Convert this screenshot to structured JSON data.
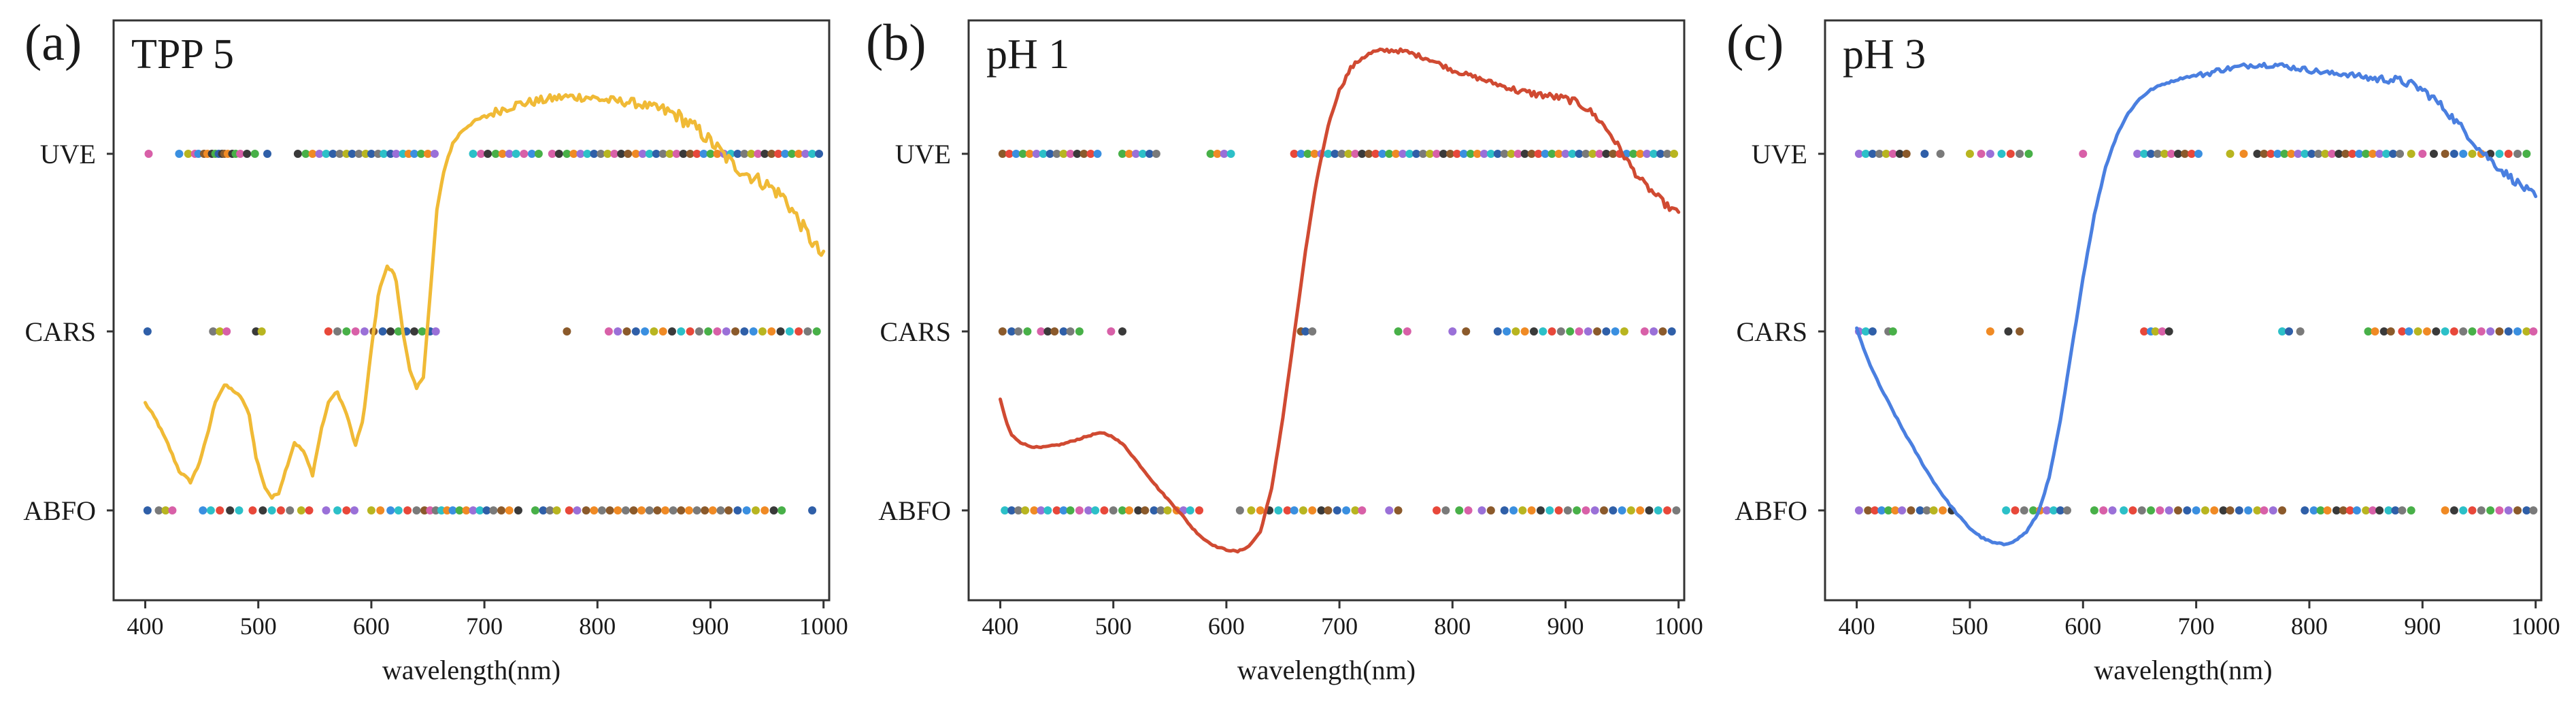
{
  "chart_data": [
    {
      "type": "line+strip",
      "panel_label": "(a)",
      "title": "TPP 5",
      "xlabel": "wavelength(nm)",
      "ylabel": "",
      "xlim": [
        372,
        1005
      ],
      "x_ticks": [
        "400",
        "500",
        "600",
        "700",
        "800",
        "900",
        "1000"
      ],
      "categories": [
        "ABFO",
        "CARS",
        "UVE"
      ],
      "spectrum_color": "#F0BA36",
      "spectrum_noise": 0.05,
      "spectrum": {
        "x": [
          400,
          410,
          420,
          430,
          440,
          447,
          455,
          462,
          470,
          478,
          486,
          492,
          498,
          505,
          512,
          518,
          525,
          532,
          540,
          548,
          556,
          563,
          570,
          578,
          586,
          593,
          600,
          607,
          614,
          621,
          628,
          634,
          640,
          646,
          652,
          658,
          665,
          672,
          680,
          690,
          700,
          715,
          730,
          750,
          770,
          790,
          810,
          830,
          850,
          870,
          890,
          905,
          920,
          935,
          950,
          965,
          980,
          990,
          1000
        ],
        "y": [
          0.6,
          0.5,
          0.37,
          0.22,
          0.16,
          0.25,
          0.42,
          0.61,
          0.7,
          0.67,
          0.62,
          0.53,
          0.3,
          0.14,
          0.07,
          0.1,
          0.24,
          0.38,
          0.33,
          0.2,
          0.46,
          0.62,
          0.66,
          0.54,
          0.36,
          0.52,
          0.9,
          1.24,
          1.36,
          1.32,
          1.0,
          0.78,
          0.68,
          0.75,
          1.2,
          1.68,
          1.92,
          2.05,
          2.12,
          2.17,
          2.2,
          2.24,
          2.27,
          2.29,
          2.31,
          2.31,
          2.29,
          2.28,
          2.25,
          2.21,
          2.12,
          2.03,
          1.93,
          1.87,
          1.82,
          1.75,
          1.6,
          1.5,
          1.41
        ]
      },
      "strips": {
        "UVE": [
          403,
          430,
          438,
          444,
          447,
          452,
          455,
          459,
          462,
          465,
          468,
          470,
          473,
          477,
          480,
          484,
          490,
          497,
          508,
          535,
          542,
          548,
          554,
          560,
          566,
          572,
          578,
          583,
          589,
          595,
          600,
          606,
          611,
          617,
          622,
          628,
          633,
          638,
          644,
          650,
          656,
          690,
          697,
          703,
          710,
          716,
          722,
          728,
          735,
          742,
          748,
          760,
          766,
          773,
          779,
          785,
          791,
          797,
          803,
          809,
          815,
          821,
          827,
          834,
          840,
          846,
          852,
          858,
          864,
          870,
          876,
          882,
          888,
          894,
          900,
          906,
          912,
          918,
          924,
          930,
          936,
          942,
          948,
          954,
          960,
          966,
          972,
          978,
          984,
          990,
          996
        ],
        "CARS": [
          402,
          460,
          466,
          472,
          498,
          503,
          562,
          570,
          578,
          586,
          594,
          602,
          610,
          617,
          624,
          631,
          638,
          645,
          652,
          657,
          773,
          810,
          818,
          826,
          834,
          842,
          850,
          858,
          866,
          874,
          882,
          890,
          898,
          906,
          914,
          922,
          930,
          938,
          946,
          954,
          962,
          970,
          978,
          986,
          994
        ],
        "ABFO": [
          402,
          412,
          418,
          424,
          451,
          458,
          466,
          475,
          483,
          495,
          504,
          512,
          520,
          528,
          538,
          545,
          560,
          570,
          578,
          585,
          600,
          608,
          617,
          624,
          632,
          640,
          647,
          652,
          657,
          662,
          667,
          672,
          678,
          684,
          690,
          696,
          702,
          708,
          715,
          722,
          730,
          745,
          752,
          758,
          764,
          775,
          782,
          790,
          797,
          804,
          811,
          818,
          825,
          832,
          839,
          846,
          853,
          860,
          867,
          874,
          881,
          888,
          895,
          902,
          909,
          916,
          924,
          932,
          940,
          948,
          956,
          963,
          990
        ]
      }
    },
    {
      "type": "line+strip",
      "panel_label": "(b)",
      "title": "pH 1",
      "xlabel": "wavelength(nm)",
      "ylabel": "",
      "xlim": [
        372,
        1005
      ],
      "x_ticks": [
        "400",
        "500",
        "600",
        "700",
        "800",
        "900",
        "1000"
      ],
      "categories": [
        "ABFO",
        "CARS",
        "UVE"
      ],
      "spectrum_color": "#D04A32",
      "spectrum_noise": 0.025,
      "spectrum": {
        "x": [
          400,
          405,
          410,
          418,
          425,
          435,
          445,
          455,
          465,
          475,
          485,
          492,
          500,
          510,
          520,
          530,
          540,
          550,
          560,
          570,
          580,
          590,
          600,
          610,
          620,
          630,
          640,
          650,
          660,
          670,
          680,
          690,
          700,
          710,
          720,
          730,
          740,
          750,
          760,
          770,
          780,
          790,
          800,
          810,
          820,
          830,
          840,
          850,
          860,
          870,
          880,
          890,
          900,
          910,
          920,
          930,
          940,
          950,
          960,
          970,
          980,
          990,
          1000
        ],
        "y": [
          0.62,
          0.5,
          0.42,
          0.38,
          0.36,
          0.35,
          0.36,
          0.37,
          0.39,
          0.41,
          0.43,
          0.43,
          0.41,
          0.36,
          0.28,
          0.2,
          0.12,
          0.05,
          -0.02,
          -0.1,
          -0.16,
          -0.2,
          -0.22,
          -0.23,
          -0.2,
          -0.12,
          0.12,
          0.52,
          0.98,
          1.45,
          1.85,
          2.15,
          2.35,
          2.47,
          2.53,
          2.56,
          2.57,
          2.57,
          2.56,
          2.54,
          2.52,
          2.49,
          2.46,
          2.44,
          2.42,
          2.4,
          2.38,
          2.36,
          2.34,
          2.33,
          2.32,
          2.31,
          2.3,
          2.28,
          2.24,
          2.18,
          2.1,
          2.0,
          1.9,
          1.82,
          1.76,
          1.7,
          1.66
        ]
      },
      "strips": {
        "UVE": [
          402,
          408,
          414,
          420,
          426,
          432,
          438,
          444,
          450,
          456,
          462,
          468,
          474,
          480,
          486,
          508,
          514,
          520,
          526,
          532,
          538,
          586,
          592,
          598,
          604,
          660,
          666,
          672,
          678,
          684,
          690,
          696,
          702,
          708,
          714,
          720,
          726,
          732,
          738,
          744,
          750,
          756,
          762,
          768,
          774,
          780,
          786,
          792,
          798,
          804,
          810,
          816,
          822,
          828,
          834,
          840,
          846,
          852,
          858,
          864,
          870,
          876,
          882,
          888,
          894,
          900,
          906,
          912,
          918,
          924,
          930,
          936,
          942,
          948,
          954,
          960,
          966,
          972,
          978,
          984,
          990,
          996
        ],
        "CARS": [
          402,
          410,
          416,
          424,
          436,
          442,
          448,
          456,
          462,
          470,
          498,
          508,
          666,
          670,
          676,
          752,
          760,
          800,
          812,
          840,
          848,
          856,
          864,
          872,
          880,
          888,
          896,
          904,
          912,
          920,
          928,
          936,
          944,
          952,
          970,
          978,
          986,
          994
        ],
        "ABFO": [
          404,
          410,
          416,
          422,
          430,
          436,
          442,
          450,
          456,
          462,
          470,
          478,
          484,
          492,
          500,
          508,
          514,
          522,
          528,
          536,
          542,
          548,
          556,
          562,
          568,
          576,
          612,
          622,
          630,
          638,
          646,
          654,
          660,
          668,
          676,
          684,
          690,
          698,
          706,
          714,
          720,
          744,
          752,
          786,
          794,
          806,
          814,
          826,
          834,
          846,
          854,
          862,
          870,
          878,
          886,
          894,
          902,
          910,
          918,
          926,
          934,
          942,
          950,
          958,
          966,
          974,
          982,
          990,
          998
        ]
      }
    },
    {
      "type": "line+strip",
      "panel_label": "(c)",
      "title": "pH 3",
      "xlabel": "wavelength(nm)",
      "ylabel": "",
      "xlim": [
        372,
        1005
      ],
      "x_ticks": [
        "400",
        "500",
        "600",
        "700",
        "800",
        "900",
        "1000"
      ],
      "categories": [
        "ABFO",
        "CARS",
        "UVE"
      ],
      "spectrum_color": "#4A7FE0",
      "spectrum_noise": 0.03,
      "spectrum": {
        "x": [
          400,
          405,
          410,
          420,
          430,
          440,
          450,
          460,
          470,
          480,
          490,
          500,
          510,
          520,
          530,
          540,
          550,
          560,
          570,
          580,
          590,
          600,
          610,
          620,
          630,
          640,
          650,
          660,
          670,
          680,
          690,
          700,
          710,
          720,
          730,
          740,
          750,
          760,
          770,
          780,
          790,
          800,
          810,
          820,
          830,
          840,
          850,
          860,
          870,
          880,
          890,
          900,
          910,
          920,
          930,
          940,
          950,
          960,
          970,
          980,
          990,
          1000
        ],
        "y": [
          1.02,
          0.92,
          0.84,
          0.7,
          0.58,
          0.46,
          0.35,
          0.24,
          0.14,
          0.05,
          -0.03,
          -0.1,
          -0.15,
          -0.18,
          -0.19,
          -0.17,
          -0.12,
          -0.02,
          0.18,
          0.5,
          0.9,
          1.3,
          1.65,
          1.92,
          2.1,
          2.22,
          2.3,
          2.35,
          2.38,
          2.4,
          2.42,
          2.43,
          2.44,
          2.46,
          2.47,
          2.48,
          2.49,
          2.49,
          2.49,
          2.48,
          2.47,
          2.46,
          2.45,
          2.44,
          2.44,
          2.43,
          2.42,
          2.41,
          2.41,
          2.4,
          2.38,
          2.35,
          2.3,
          2.24,
          2.17,
          2.1,
          2.02,
          1.96,
          1.9,
          1.85,
          1.8,
          1.75
        ]
      },
      "strips": {
        "UVE": [
          402,
          408,
          414,
          420,
          426,
          432,
          438,
          444,
          460,
          474,
          500,
          510,
          518,
          528,
          536,
          544,
          552,
          600,
          648,
          654,
          660,
          666,
          672,
          678,
          684,
          690,
          696,
          702,
          730,
          742,
          754,
          760,
          766,
          772,
          778,
          784,
          790,
          796,
          802,
          808,
          814,
          820,
          826,
          832,
          838,
          844,
          850,
          856,
          862,
          868,
          874,
          880,
          890,
          900,
          910,
          920,
          928,
          936,
          944,
          952,
          960,
          968,
          976,
          984,
          992
        ],
        "CARS": [
          402,
          408,
          414,
          428,
          432,
          518,
          534,
          544,
          654,
          660,
          664,
          670,
          676,
          776,
          782,
          792,
          852,
          858,
          866,
          872,
          882,
          888,
          896,
          904,
          912,
          920,
          928,
          936,
          944,
          952,
          960,
          968,
          976,
          984,
          992,
          998
        ],
        "ABFO": [
          402,
          410,
          416,
          422,
          428,
          434,
          440,
          448,
          456,
          462,
          468,
          476,
          484,
          532,
          540,
          548,
          556,
          562,
          568,
          574,
          580,
          586,
          610,
          618,
          626,
          636,
          644,
          652,
          660,
          668,
          676,
          684,
          692,
          700,
          708,
          716,
          724,
          730,
          738,
          746,
          754,
          760,
          768,
          776,
          796,
          804,
          810,
          816,
          824,
          830,
          836,
          842,
          850,
          856,
          862,
          870,
          876,
          882,
          890,
          920,
          928,
          936,
          944,
          952,
          960,
          968,
          976,
          984,
          992,
          998
        ]
      }
    }
  ],
  "dot_palette": [
    "#E8483A",
    "#3A8FE0",
    "#48B048",
    "#F08A24",
    "#9A70D8",
    "#2CC0C8",
    "#2F5FA8",
    "#7A7A7A",
    "#B8B520",
    "#D860A8",
    "#3A3A3A",
    "#8B5A2B"
  ]
}
